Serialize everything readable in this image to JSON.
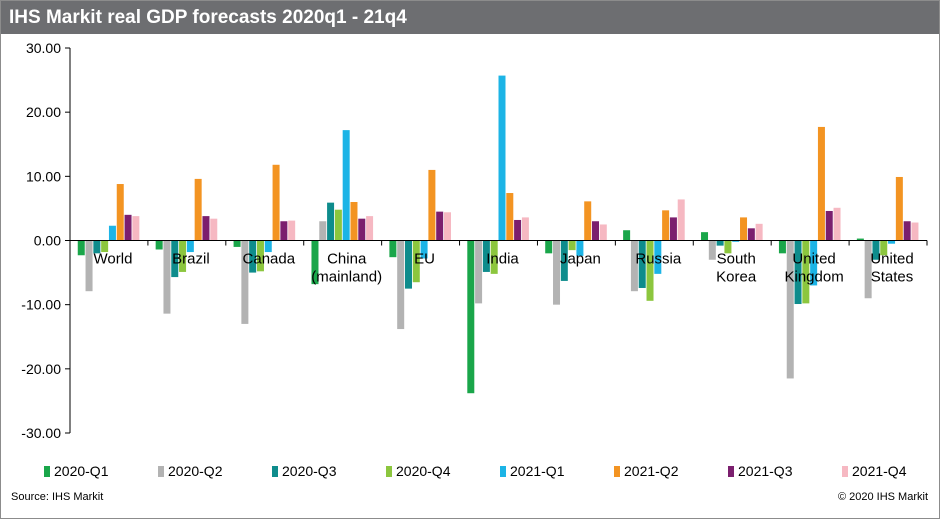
{
  "header": {
    "title": "IHS Markit real GDP forecasts 2020q1 - 21q4"
  },
  "footer": {
    "source": "Source: IHS Markit",
    "copyright": "© 2020 IHS Markit"
  },
  "chart_data": {
    "type": "bar",
    "title": "IHS Markit real GDP forecasts 2020q1 - 21q4",
    "ylim": [
      -30,
      30
    ],
    "yticks": [
      "30.00",
      "20.00",
      "10.00",
      "0.00",
      "-10.00",
      "-20.00",
      "-30.00"
    ],
    "ytick_values": [
      30,
      20,
      10,
      0,
      -10,
      -20,
      -30
    ],
    "grid": false,
    "legend_position": "bottom",
    "categories": [
      [
        "World"
      ],
      [
        "Brazil"
      ],
      [
        "Canada"
      ],
      [
        "China",
        "(mainland)"
      ],
      [
        "EU"
      ],
      [
        "India"
      ],
      [
        "Japan"
      ],
      [
        "Russia"
      ],
      [
        "South",
        "Korea"
      ],
      [
        "United",
        "Kingdom"
      ],
      [
        "United",
        "States"
      ]
    ],
    "series": [
      {
        "name": "2020-Q1",
        "color": "#1aa64a",
        "values": [
          -2.3,
          -1.4,
          -1.0,
          -6.8,
          -2.6,
          -23.8,
          -2.0,
          1.6,
          1.3,
          -2.0,
          0.3
        ]
      },
      {
        "name": "2020-Q2",
        "color": "#b3b3b3",
        "values": [
          -7.9,
          -11.4,
          -13.0,
          3.0,
          -13.8,
          -9.8,
          -10.0,
          -7.9,
          -3.0,
          -21.5,
          -9.0
        ]
      },
      {
        "name": "2020-Q3",
        "color": "#0e8c8c",
        "values": [
          -2.0,
          -5.7,
          -5.0,
          5.9,
          -7.5,
          -4.9,
          -6.3,
          -7.4,
          -0.8,
          -9.9,
          -3.0
        ]
      },
      {
        "name": "2020-Q4",
        "color": "#8cc63e",
        "values": [
          -1.8,
          -4.9,
          -4.8,
          4.8,
          -6.5,
          -5.2,
          -1.5,
          -9.4,
          -2.0,
          -9.8,
          -2.3
        ]
      },
      {
        "name": "2021-Q1",
        "color": "#1cb4e6",
        "values": [
          2.3,
          -1.8,
          -1.8,
          17.2,
          -2.8,
          25.7,
          -2.4,
          -5.2,
          -0.2,
          -7.0,
          -0.5
        ]
      },
      {
        "name": "2021-Q2",
        "color": "#f39422",
        "values": [
          8.8,
          9.6,
          11.8,
          6.0,
          11.0,
          7.4,
          6.1,
          4.7,
          3.6,
          17.7,
          9.9
        ]
      },
      {
        "name": "2021-Q3",
        "color": "#7b1f6e",
        "values": [
          4.0,
          3.8,
          3.0,
          3.4,
          4.5,
          3.2,
          3.0,
          3.6,
          1.9,
          4.6,
          3.0
        ]
      },
      {
        "name": "2021-Q4",
        "color": "#f6b8c2",
        "values": [
          3.8,
          3.4,
          3.1,
          3.8,
          4.4,
          3.6,
          2.5,
          6.4,
          2.6,
          5.1,
          2.8
        ]
      }
    ]
  }
}
